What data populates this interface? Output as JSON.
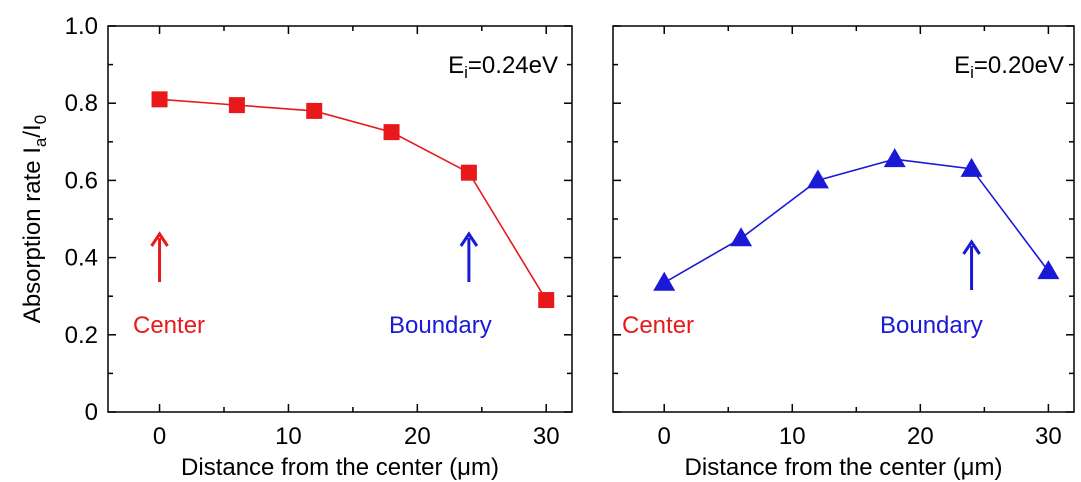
{
  "ylabel": {
    "main": "Absorption rate I",
    "sub1": "a",
    "mid": "/I",
    "sub2": "0"
  },
  "chart_data": [
    {
      "type": "line",
      "title": "",
      "xlabel": "Distance from the center (μm)",
      "ylabel": "Absorption rate Ia/I0",
      "xlim": [
        -4,
        32
      ],
      "ylim": [
        0,
        1.0
      ],
      "xticks": [
        0,
        10,
        20,
        30
      ],
      "yticks": [
        0,
        0.2,
        0.4,
        0.6,
        0.8,
        1.0
      ],
      "ytick_labels": [
        "0",
        "0.2",
        "0.4",
        "0.6",
        "0.8",
        "1.0"
      ],
      "grid": false,
      "series": [
        {
          "marker": "square",
          "color": "#e8191b",
          "x": [
            0,
            6,
            12,
            18,
            24,
            30
          ],
          "y": [
            0.81,
            0.795,
            0.78,
            0.725,
            0.62,
            0.29
          ]
        }
      ],
      "energy_label": {
        "main": "E",
        "sub": "i",
        "value": "=0.24eV"
      },
      "annotations": [
        {
          "text": "Center",
          "color": "#e8191b",
          "arrow_x": 0
        },
        {
          "text": "Boundary",
          "color": "#1a1ad6",
          "arrow_x": 24
        }
      ]
    },
    {
      "type": "line",
      "title": "",
      "xlabel": "Distance from the center (μm)",
      "ylabel": "",
      "xlim": [
        -4,
        32
      ],
      "ylim": [
        0,
        1.0
      ],
      "xticks": [
        0,
        10,
        20,
        30
      ],
      "yticks": [
        0,
        0.2,
        0.4,
        0.6,
        0.8,
        1.0
      ],
      "ytick_labels": [],
      "grid": false,
      "series": [
        {
          "marker": "triangle",
          "color": "#1a1ad6",
          "x": [
            0,
            6,
            12,
            18,
            24,
            30
          ],
          "y": [
            0.335,
            0.45,
            0.6,
            0.655,
            0.63,
            0.365
          ]
        }
      ],
      "energy_label": {
        "main": "E",
        "sub": "i",
        "value": "=0.20eV"
      },
      "annotations": [
        {
          "text": "Center",
          "color": "#e8191b",
          "arrow_x": null
        },
        {
          "text": "Boundary",
          "color": "#1a1ad6",
          "arrow_x": 24
        }
      ]
    }
  ]
}
